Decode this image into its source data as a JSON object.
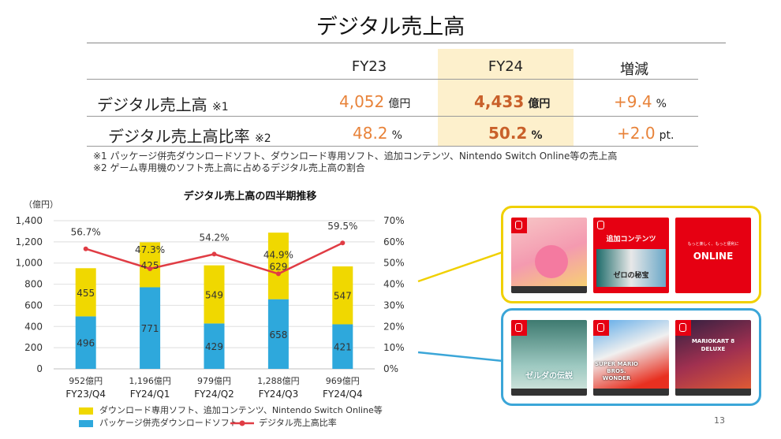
{
  "title": "デジタル売上高",
  "table": {
    "headers": [
      "FY23",
      "FY24",
      "増減"
    ],
    "rows": [
      {
        "label": "デジタル売上高",
        "note": "※1",
        "fy23": "4,052",
        "fy23_unit": "億円",
        "fy24": "4,433",
        "fy24_unit": "億円",
        "change": "+9.4",
        "change_unit": "%"
      },
      {
        "label": "デジタル売上高比率",
        "note": "※2",
        "fy23": "48.2",
        "fy23_unit": "%",
        "fy24": "50.2",
        "fy24_unit": "%",
        "change": "+2.0",
        "change_unit": "pt."
      }
    ],
    "footnotes": [
      "※1 パッケージ併売ダウンロードソフト、ダウンロード専用ソフト、追加コンテンツ、Nintendo Switch Online等の売上高",
      "※2 ゲーム専用機のソフト売上高に占めるデジタル売上高の割合"
    ]
  },
  "chart_data": {
    "type": "bar",
    "stacked": true,
    "title": "デジタル売上高の四半期推移",
    "ylabel": "（億円）",
    "ylim": [
      0,
      1400
    ],
    "y_ticks": [
      "0",
      "200",
      "400",
      "600",
      "800",
      "1,000",
      "1,200",
      "1,400"
    ],
    "y2lim": [
      0,
      70
    ],
    "y2_ticks": [
      "0%",
      "10%",
      "20%",
      "30%",
      "40%",
      "50%",
      "60%",
      "70%"
    ],
    "grid": true,
    "categories": [
      "FY23/Q4",
      "FY24/Q1",
      "FY24/Q2",
      "FY24/Q3",
      "FY24/Q4"
    ],
    "totals": [
      "952億円",
      "1,196億円",
      "979億円",
      "1,288億円",
      "969億円"
    ],
    "series": [
      {
        "name": "パッケージ併売ダウンロードソフト",
        "color": "#2ea8dc",
        "values": [
          496,
          771,
          429,
          658,
          421
        ]
      },
      {
        "name": "ダウンロード専用ソフト、追加コンテンツ、Nintendo Switch Online等",
        "color": "#f0d800",
        "values": [
          455,
          425,
          549,
          629,
          547
        ]
      },
      {
        "name": "デジタル売上高比率",
        "type": "line",
        "axis": "right",
        "color": "#e03c44",
        "values": [
          56.7,
          47.3,
          54.2,
          44.9,
          59.5
        ],
        "labels": [
          "56.7%",
          "47.3%",
          "54.2%",
          "44.9%",
          "59.5%"
        ]
      }
    ],
    "legend_position": "bottom"
  },
  "products": {
    "digital_group_color": "#f0d000",
    "package_group_color": "#3ba6d8",
    "digital": [
      {
        "name": "kirby-card",
        "text": ""
      },
      {
        "name": "dlc-card",
        "text": "追加コンテンツ",
        "subtext": "ゼロの秘宝"
      },
      {
        "name": "nso-card",
        "text": "ONLINE",
        "subtext": "もっと楽しく、もっと便利に"
      }
    ],
    "package": [
      {
        "name": "zelda-card",
        "text": "ゼルダの伝説"
      },
      {
        "name": "mario-wonder-card",
        "text": "SUPER MARIO BROS. WONDER"
      },
      {
        "name": "mariokart-card",
        "text": "MARIOKART 8 DELUXE"
      }
    ]
  },
  "page_number": "13"
}
